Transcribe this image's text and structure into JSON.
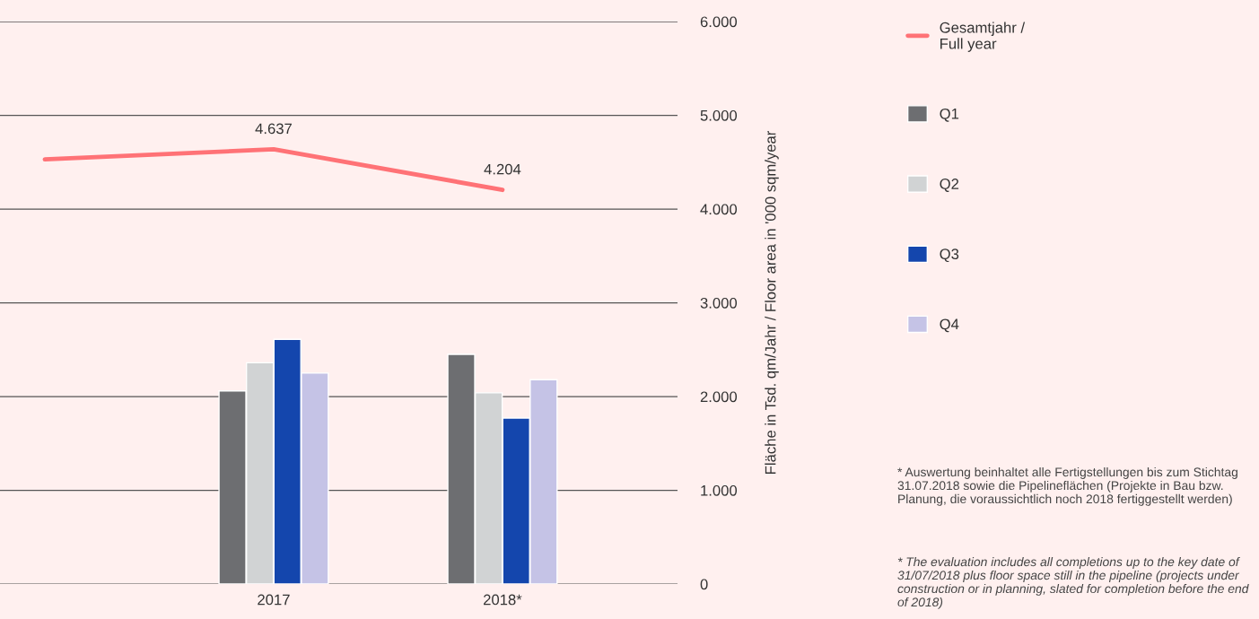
{
  "chart_data": {
    "type": "bar",
    "categories": [
      null,
      "2017",
      "2018*"
    ],
    "series": [
      {
        "name": "Gesamtjahr /\nFull year",
        "type": "line",
        "color": "#ff7276",
        "values": [
          4530,
          4637,
          4204
        ],
        "value_labels": [
          null,
          "4.637",
          "4.204"
        ]
      },
      {
        "name": "Q1",
        "color": "#6d6e71",
        "values": [
          null,
          2060,
          2450
        ]
      },
      {
        "name": "Q2",
        "color": "#d1d3d4",
        "values": [
          null,
          2360,
          2040
        ]
      },
      {
        "name": "Q3",
        "color": "#1446ad",
        "values": [
          null,
          2610,
          1770
        ]
      },
      {
        "name": "Q4",
        "color": "#c5c3e6",
        "values": [
          null,
          2250,
          2180
        ]
      }
    ],
    "ylabel": "Fläche in Tsd. qm/Jahr / Floor area in '000 sqm/year",
    "ylim": [
      0,
      6000
    ],
    "yticks": [
      0,
      {
        "value": 1000,
        "label": "1.000"
      },
      {
        "value": 2000,
        "label": "2.000"
      },
      {
        "value": 3000,
        "label": "3.000"
      },
      {
        "value": 4000,
        "label": "4.000"
      },
      {
        "value": 5000,
        "label": "5.000"
      },
      {
        "value": 6000,
        "label": "6.000"
      }
    ],
    "grid": "y",
    "legend": "right",
    "annotations": [
      "* Auswertung beinhaltet alle Fertigstellungen bis zum Stichtag 31.07.2018 sowie die Pipelineflächen (Projekte in Bau bzw. Planung, die voraussichtlich noch 2018 fertiggestellt werden)",
      "* The evaluation includes all completions up to the key date of 31/07/2018 plus floor space still in the pipeline (projects under construction or in planning, slated for completion before the end of 2018)"
    ]
  }
}
